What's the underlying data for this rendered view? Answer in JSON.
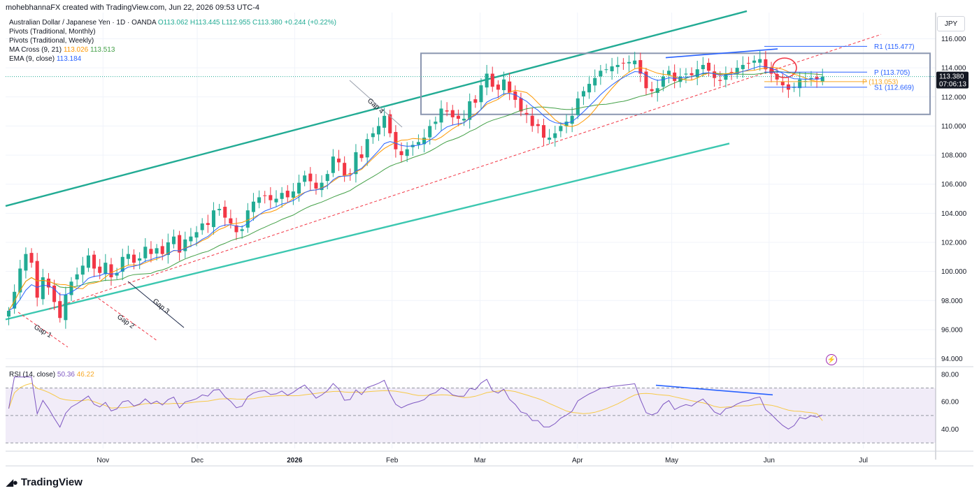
{
  "header": {
    "credit": "mohebhannaFX created with TradingView.com, Jun 22, 2026 09:53 UTC-4"
  },
  "legend": {
    "symbol": "Australian Dollar / Japanese Yen · 1D · OANDA",
    "ohlc": {
      "o": "O113.062",
      "h": "H113.445",
      "l": "L112.955",
      "c": "C113.380",
      "change": "+0.244 (+0.22%)"
    },
    "pivots_monthly": "Pivots (Traditional, Monthly)",
    "pivots_weekly": "Pivots (Traditional, Weekly)",
    "ma_cross": {
      "label": "MA Cross (9, 21)",
      "v1": "113.026",
      "v2": "113.513"
    },
    "ema": {
      "label": "EMA (9, close)",
      "v": "113.184"
    }
  },
  "rsi_legend": {
    "label": "RSI (14, close)",
    "v1": "50.36",
    "v2": "46.22"
  },
  "currency": "JPY",
  "brand": "TradingView",
  "colors": {
    "up": "#22ab94",
    "down": "#f23645",
    "channel": "#22ab94",
    "box": "#8b96b0",
    "ema": "#2962ff",
    "ma9": "#ff9800",
    "ma21": "#43a047",
    "rsi": "#7e57c2",
    "rsi_ma": "#f7c948",
    "pivot": "#2962ff",
    "pivot_monthly": "#f7a825"
  },
  "chart_data": {
    "type": "candlestick",
    "price_axis": {
      "min": 93.5,
      "max": 117.8,
      "ticks": [
        94,
        96,
        98,
        100,
        102,
        104,
        106,
        108,
        110,
        112,
        114,
        116
      ]
    },
    "rsi_axis": {
      "min": 26,
      "max": 84,
      "ticks": [
        40,
        60,
        80
      ]
    },
    "time_labels": [
      {
        "label": "Nov",
        "day": 31
      },
      {
        "label": "Dec",
        "day": 61
      },
      {
        "label": "2026",
        "day": 92
      },
      {
        "label": "Feb",
        "day": 123
      },
      {
        "label": "Mar",
        "day": 151
      },
      {
        "label": "Apr",
        "day": 182
      },
      {
        "label": "May",
        "day": 212
      },
      {
        "label": "Jun",
        "day": 243
      },
      {
        "label": "Jul",
        "day": 273
      }
    ],
    "last_price": {
      "value": "113.380",
      "countdown": "07:06:13"
    },
    "closes": [
      97.3,
      98.6,
      100.2,
      101.2,
      100.6,
      98.2,
      99.6,
      98.9,
      97.9,
      96.8,
      98.4,
      99.3,
      99.8,
      100.4,
      101.1,
      100.2,
      99.9,
      100.6,
      99.6,
      99.9,
      101.0,
      101.2,
      100.6,
      100.9,
      101.7,
      101.2,
      101.6,
      101.2,
      102.0,
      102.4,
      101.3,
      102.2,
      102.4,
      102.7,
      103.3,
      103.2,
      104.2,
      104.3,
      103.7,
      103.3,
      102.7,
      102.9,
      104.2,
      104.8,
      105.1,
      105.2,
      104.9,
      105.0,
      105.4,
      105.1,
      105.5,
      106.1,
      106.6,
      106.2,
      105.7,
      106.1,
      106.7,
      107.9,
      107.5,
      106.6,
      106.7,
      108.2,
      107.8,
      109.1,
      109.5,
      110.0,
      110.7,
      109.5,
      108.4,
      108.0,
      108.4,
      108.7,
      108.9,
      109.2,
      110.0,
      110.3,
      111.2,
      111.0,
      110.6,
      110.5,
      110.5,
      111.7,
      111.6,
      112.8,
      113.6,
      112.7,
      112.5,
      113.2,
      112.3,
      111.8,
      111.0,
      110.8,
      110.0,
      110.0,
      109.2,
      109.2,
      109.5,
      110.0,
      110.3,
      110.7,
      111.9,
      112.4,
      112.9,
      113.3,
      113.8,
      113.9,
      114.1,
      114.2,
      114.3,
      114.4,
      114.5,
      113.6,
      112.6,
      112.4,
      112.6,
      113.4,
      113.8,
      113.1,
      113.4,
      113.6,
      113.5,
      113.9,
      114.2,
      113.8,
      113.3,
      113.1,
      113.6,
      113.7,
      114.0,
      114.2,
      114.3,
      114.5,
      114.6,
      113.9,
      113.6,
      113.2,
      112.8,
      112.5,
      112.7,
      113.2,
      113.1,
      113.3,
      113.2,
      113.4
    ],
    "pivot_levels": [
      {
        "label": "R1 (115.477)",
        "value": 115.477
      },
      {
        "label": "P (113.705)",
        "value": 113.705
      },
      {
        "label": "P (113.053)",
        "value": 113.053
      },
      {
        "label": "S1 (112.669)",
        "value": 112.669
      }
    ],
    "rsi_last": 50.36,
    "rsi_ma_last": 46.22,
    "annotations": [
      "Gap 1",
      "Gap 2",
      "Gap 3",
      "Gap 4"
    ]
  }
}
